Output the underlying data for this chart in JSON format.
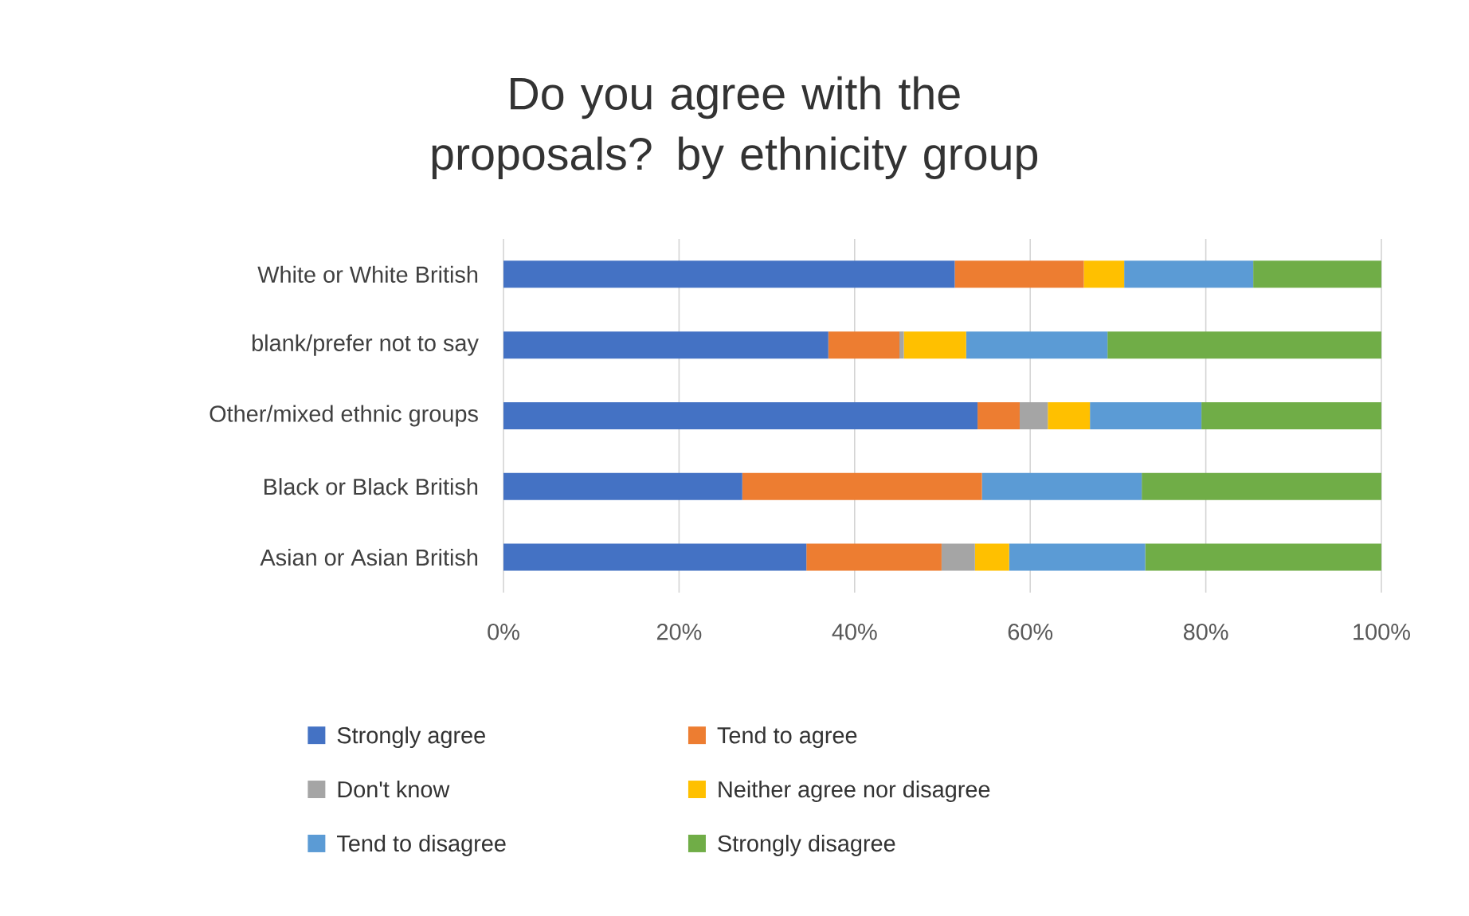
{
  "chart_data": {
    "type": "bar",
    "orientation": "horizontal",
    "stacked": true,
    "title": "Do you agree with the proposals? by ethnicity group",
    "categories": [
      "White or White British",
      "blank/prefer not to say",
      "Other/mixed ethnic groups",
      "Black or Black British",
      "Asian or Asian British"
    ],
    "series": [
      {
        "name": "Strongly agree",
        "color": "#4472c4",
        "values": [
          51.4,
          37.0,
          54.0,
          27.2,
          34.5
        ]
      },
      {
        "name": "Tend to agree",
        "color": "#ed7d31",
        "values": [
          14.7,
          8.1,
          4.8,
          27.3,
          15.4
        ]
      },
      {
        "name": "Don't know",
        "color": "#a5a5a5",
        "values": [
          0,
          0.5,
          3.2,
          0,
          3.8
        ]
      },
      {
        "name": "Neither agree nor disagree",
        "color": "#ffc000",
        "values": [
          4.6,
          7.1,
          4.8,
          0,
          3.9
        ]
      },
      {
        "name": "Tend to disagree",
        "color": "#5b9bd5",
        "values": [
          14.7,
          16.1,
          12.7,
          18.2,
          15.5
        ]
      },
      {
        "name": "Strongly disagree",
        "color": "#70ad47",
        "values": [
          14.6,
          31.2,
          20.5,
          27.3,
          26.9
        ]
      }
    ],
    "xlim": [
      0,
      100
    ],
    "xticks": [
      {
        "value": 0,
        "label": "0%"
      },
      {
        "value": 20,
        "label": "20%"
      },
      {
        "value": 40,
        "label": "40%"
      },
      {
        "value": 60,
        "label": "60%"
      },
      {
        "value": 80,
        "label": "80%"
      },
      {
        "value": 100,
        "label": "100%"
      }
    ],
    "grid": "x",
    "legend": "bottom"
  }
}
